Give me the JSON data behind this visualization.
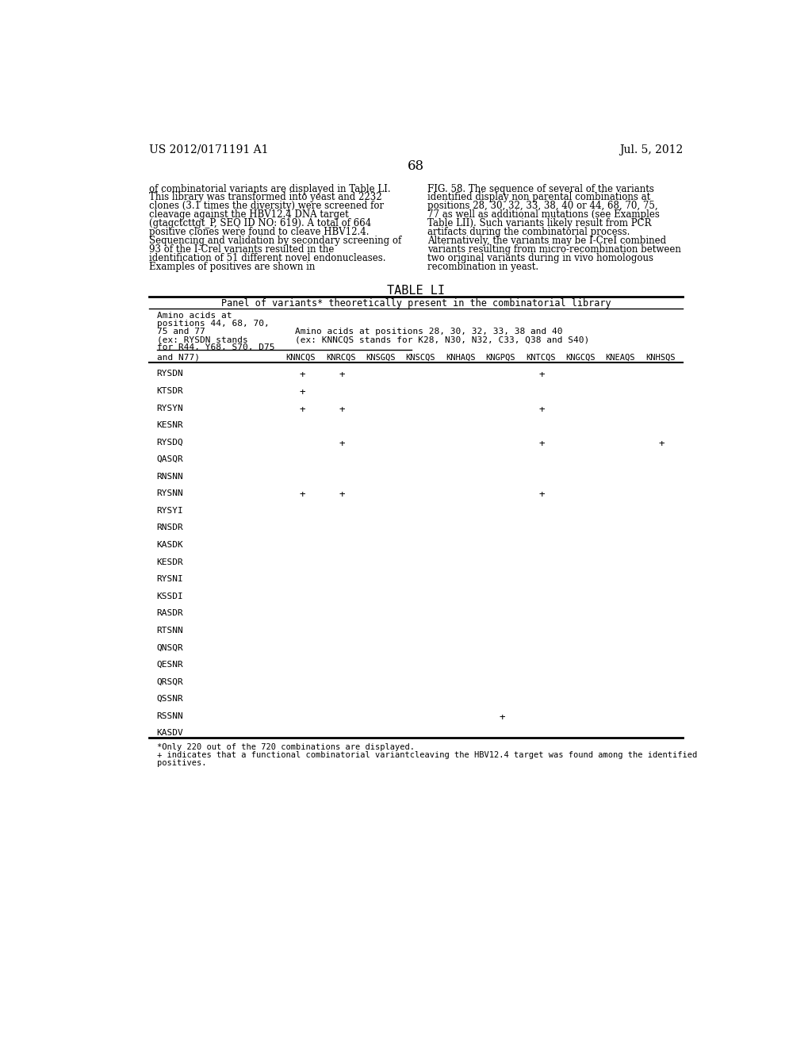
{
  "page_header_left": "US 2012/0171191 A1",
  "page_header_right": "Jul. 5, 2012",
  "page_number": "68",
  "left_paragraph": "of combinatorial variants are displayed in Table LI. This library was transformed into yeast and 2232 clones (3.1 times the diversity) were screened for cleavage against the HBV12.4 DNA target (gtagctcttgt_P, SEQ ID NO: 619). A total of 664 positive clones were found to cleave HBV12.4. Sequencing and validation by secondary screening of 93 of the I-Crel variants resulted in the identification of 51 different novel endonucleases. Examples of positives are shown in",
  "right_paragraph": "FIG. 58. The sequence of several of the variants identified display non parental combinations at positions 28, 30, 32, 33, 38, 40 or 44, 68, 70, 75, 77 as well as additional mutations (see Examples Table LII). Such variants likely result from PCR artifacts during the combinatorial process. Alternatively, the variants may be I-CreI combined variants resulting from micro-recombination between two original variants during in vivo homologous recombination in yeast.",
  "table_title": "TABLE LI",
  "table_subtitle": "Panel of variants* theoretically present in the combinatorial library",
  "col_header_left_line1": "Amino acids at",
  "col_header_left_line2": "positions 44, 68, 70,",
  "col_header_left_line3": "75 and 77",
  "col_header_left_line4": "(ex: RYSDN stands",
  "col_header_left_line5": "for R44, Y68, S70, D75",
  "col_header_right_line1": "Amino acids at positions 28, 30, 32, 33, 38 and 40",
  "col_header_right_line2": "(ex: KNNCQS stands for K28, N30, N32, C33, Q38 and S40)",
  "col_headers": [
    "and N77)",
    "KNNCQS",
    "KNRCQS",
    "KNSGQS",
    "KNSCQS",
    "KNHAQS",
    "KNGPQS",
    "KNTCQS",
    "KNGCQS",
    "KNEAQS",
    "KNHSQS"
  ],
  "rows": [
    {
      "label": "RYSDN",
      "plusses": [
        1,
        1,
        0,
        0,
        0,
        0,
        1,
        0,
        0,
        0
      ]
    },
    {
      "label": "KTSDR",
      "plusses": [
        1,
        0,
        0,
        0,
        0,
        0,
        0,
        0,
        0,
        0
      ]
    },
    {
      "label": "RYSYN",
      "plusses": [
        1,
        1,
        0,
        0,
        0,
        0,
        1,
        0,
        0,
        0
      ]
    },
    {
      "label": "KESNR",
      "plusses": [
        0,
        0,
        0,
        0,
        0,
        0,
        0,
        0,
        0,
        0
      ]
    },
    {
      "label": "RYSDQ",
      "plusses": [
        0,
        1,
        0,
        0,
        0,
        0,
        1,
        0,
        0,
        1
      ]
    },
    {
      "label": "QASQR",
      "plusses": [
        0,
        0,
        0,
        0,
        0,
        0,
        0,
        0,
        0,
        0
      ]
    },
    {
      "label": "RNSNN",
      "plusses": [
        0,
        0,
        0,
        0,
        0,
        0,
        0,
        0,
        0,
        0
      ]
    },
    {
      "label": "RYSNN",
      "plusses": [
        1,
        1,
        0,
        0,
        0,
        0,
        1,
        0,
        0,
        0
      ]
    },
    {
      "label": "RYSYI",
      "plusses": [
        0,
        0,
        0,
        0,
        0,
        0,
        0,
        0,
        0,
        0
      ]
    },
    {
      "label": "RNSDR",
      "plusses": [
        0,
        0,
        0,
        0,
        0,
        0,
        0,
        0,
        0,
        0
      ]
    },
    {
      "label": "KASDK",
      "plusses": [
        0,
        0,
        0,
        0,
        0,
        0,
        0,
        0,
        0,
        0
      ]
    },
    {
      "label": "KESDR",
      "plusses": [
        0,
        0,
        0,
        0,
        0,
        0,
        0,
        0,
        0,
        0
      ]
    },
    {
      "label": "RYSNI",
      "plusses": [
        0,
        0,
        0,
        0,
        0,
        0,
        0,
        0,
        0,
        0
      ]
    },
    {
      "label": "KSSDI",
      "plusses": [
        0,
        0,
        0,
        0,
        0,
        0,
        0,
        0,
        0,
        0
      ]
    },
    {
      "label": "RASDR",
      "plusses": [
        0,
        0,
        0,
        0,
        0,
        0,
        0,
        0,
        0,
        0
      ]
    },
    {
      "label": "RTSNN",
      "plusses": [
        0,
        0,
        0,
        0,
        0,
        0,
        0,
        0,
        0,
        0
      ]
    },
    {
      "label": "QNSQR",
      "plusses": [
        0,
        0,
        0,
        0,
        0,
        0,
        0,
        0,
        0,
        0
      ]
    },
    {
      "label": "QESNR",
      "plusses": [
        0,
        0,
        0,
        0,
        0,
        0,
        0,
        0,
        0,
        0
      ]
    },
    {
      "label": "QRSQR",
      "plusses": [
        0,
        0,
        0,
        0,
        0,
        0,
        0,
        0,
        0,
        0
      ]
    },
    {
      "label": "QSSNR",
      "plusses": [
        0,
        0,
        0,
        0,
        0,
        0,
        0,
        0,
        0,
        0
      ]
    },
    {
      "label": "RSSNN",
      "plusses": [
        0,
        0,
        0,
        0,
        0,
        1,
        0,
        0,
        0,
        0
      ]
    },
    {
      "label": "KASDV",
      "plusses": [
        0,
        0,
        0,
        0,
        0,
        0,
        0,
        0,
        0,
        0
      ]
    }
  ],
  "footnote1": "*Only 220 out of the 720 combinations are displayed.",
  "footnote2": "+ indicates that a functional combinatorial variantcleaving the HBV12.4 target was found among the identified",
  "footnote3": "positives.",
  "bg_color": "#ffffff",
  "text_color": "#000000"
}
